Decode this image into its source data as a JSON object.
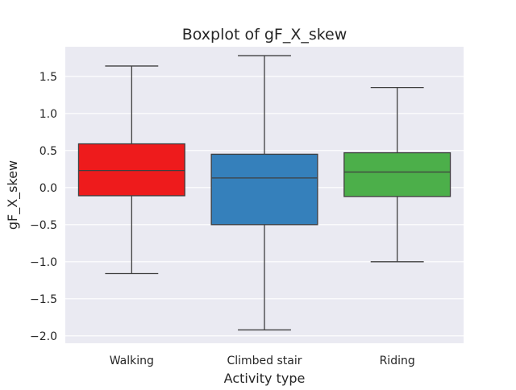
{
  "chart_data": {
    "type": "box",
    "title": "Boxplot of gF_X_skew",
    "xlabel": "Activity type",
    "ylabel": "gF_X_skew",
    "ylim": [
      -2.1,
      1.9
    ],
    "yticks": [
      -2.0,
      -1.5,
      -1.0,
      -0.5,
      0.0,
      0.5,
      1.0,
      1.5
    ],
    "ytick_labels": [
      "−2.0",
      "−1.5",
      "−1.0",
      "−0.5",
      "0.0",
      "0.5",
      "1.0",
      "1.5"
    ],
    "grid": true,
    "categories": [
      "Walking",
      "Climbed stair",
      "Riding"
    ],
    "boxes": [
      {
        "category": "Walking",
        "color": "#ee1b1c",
        "whisker_low": -1.16,
        "q1": -0.11,
        "median": 0.23,
        "q3": 0.59,
        "whisker_high": 1.64
      },
      {
        "category": "Climbed stair",
        "color": "#3580bb",
        "whisker_low": -1.92,
        "q1": -0.5,
        "median": 0.13,
        "q3": 0.45,
        "whisker_high": 1.78
      },
      {
        "category": "Riding",
        "color": "#4caf4a",
        "whisker_low": -1.0,
        "q1": -0.12,
        "median": 0.21,
        "q3": 0.47,
        "whisker_high": 1.35
      }
    ]
  }
}
